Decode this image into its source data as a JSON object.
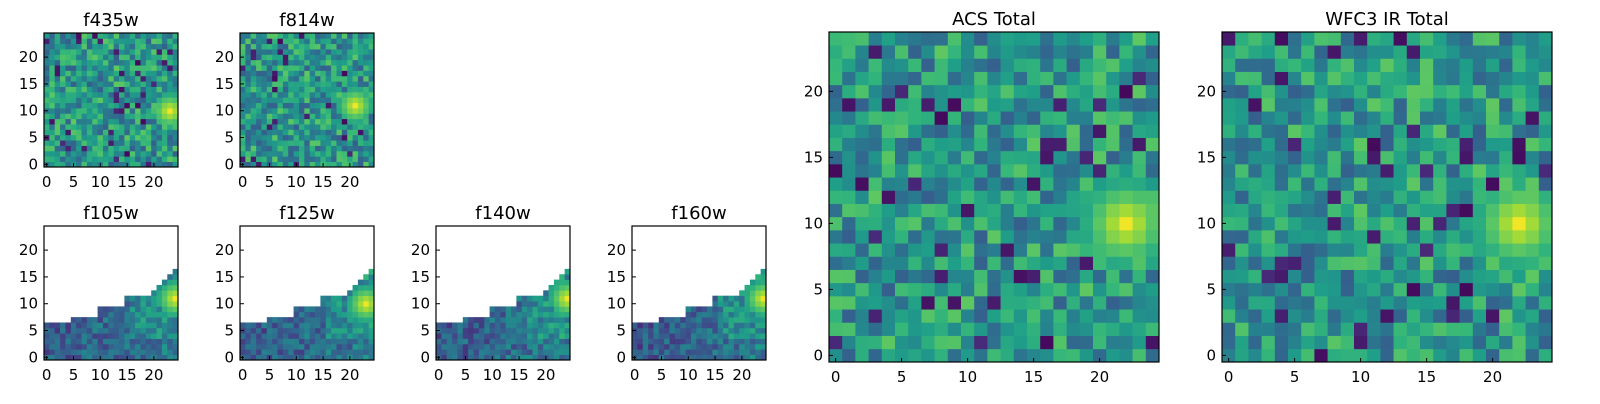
{
  "chart_data": [
    {
      "id": "f435w",
      "type": "heatmap",
      "title": "f435w",
      "grid_size": 25,
      "xticks": [
        "0",
        "5",
        "10",
        "15",
        "20"
      ],
      "yticks": [
        "0",
        "5",
        "10",
        "15",
        "20"
      ],
      "colormap": "viridis",
      "coverage": "full",
      "bright_spot": {
        "x": 23,
        "y": 10
      }
    },
    {
      "id": "f814w",
      "type": "heatmap",
      "title": "f814w",
      "grid_size": 25,
      "xticks": [
        "0",
        "5",
        "10",
        "15",
        "20"
      ],
      "yticks": [
        "0",
        "5",
        "10",
        "15",
        "20"
      ],
      "colormap": "viridis",
      "coverage": "full",
      "bright_spot": {
        "x": 21,
        "y": 11
      }
    },
    {
      "id": "f105w",
      "type": "heatmap",
      "title": "f105w",
      "grid_size": 25,
      "xticks": [
        "0",
        "5",
        "10",
        "15",
        "20"
      ],
      "yticks": [
        "0",
        "5",
        "10",
        "15",
        "20"
      ],
      "colormap": "viridis",
      "coverage": "partial-lower-wedge",
      "bright_spot": {
        "x": 24,
        "y": 11
      }
    },
    {
      "id": "f125w",
      "type": "heatmap",
      "title": "f125w",
      "grid_size": 25,
      "xticks": [
        "0",
        "5",
        "10",
        "15",
        "20"
      ],
      "yticks": [
        "0",
        "5",
        "10",
        "15",
        "20"
      ],
      "colormap": "viridis",
      "coverage": "partial-lower-wedge",
      "bright_spot": {
        "x": 23,
        "y": 10
      }
    },
    {
      "id": "f140w",
      "type": "heatmap",
      "title": "f140w",
      "grid_size": 25,
      "xticks": [
        "0",
        "5",
        "10",
        "15",
        "20"
      ],
      "yticks": [
        "0",
        "5",
        "10",
        "15",
        "20"
      ],
      "colormap": "viridis",
      "coverage": "partial-lower-wedge",
      "bright_spot": {
        "x": 24,
        "y": 11
      }
    },
    {
      "id": "f160w",
      "type": "heatmap",
      "title": "f160w",
      "grid_size": 25,
      "xticks": [
        "0",
        "5",
        "10",
        "15",
        "20"
      ],
      "yticks": [
        "0",
        "5",
        "10",
        "15",
        "20"
      ],
      "colormap": "viridis",
      "coverage": "partial-lower-wedge",
      "bright_spot": {
        "x": 24,
        "y": 11
      }
    },
    {
      "id": "acs_total",
      "type": "heatmap",
      "title": "ACS Total",
      "grid_size": 25,
      "xticks": [
        "0",
        "5",
        "10",
        "15",
        "20"
      ],
      "yticks": [
        "0",
        "5",
        "10",
        "15",
        "20"
      ],
      "colormap": "viridis",
      "coverage": "full",
      "bright_spot": {
        "x": 22,
        "y": 10
      }
    },
    {
      "id": "wfc3_ir_total",
      "type": "heatmap",
      "title": "WFC3 IR Total",
      "grid_size": 25,
      "xticks": [
        "0",
        "5",
        "10",
        "15",
        "20"
      ],
      "yticks": [
        "0",
        "5",
        "10",
        "15",
        "20"
      ],
      "colormap": "viridis",
      "coverage": "full",
      "bright_spot": {
        "x": 22,
        "y": 10
      }
    }
  ]
}
